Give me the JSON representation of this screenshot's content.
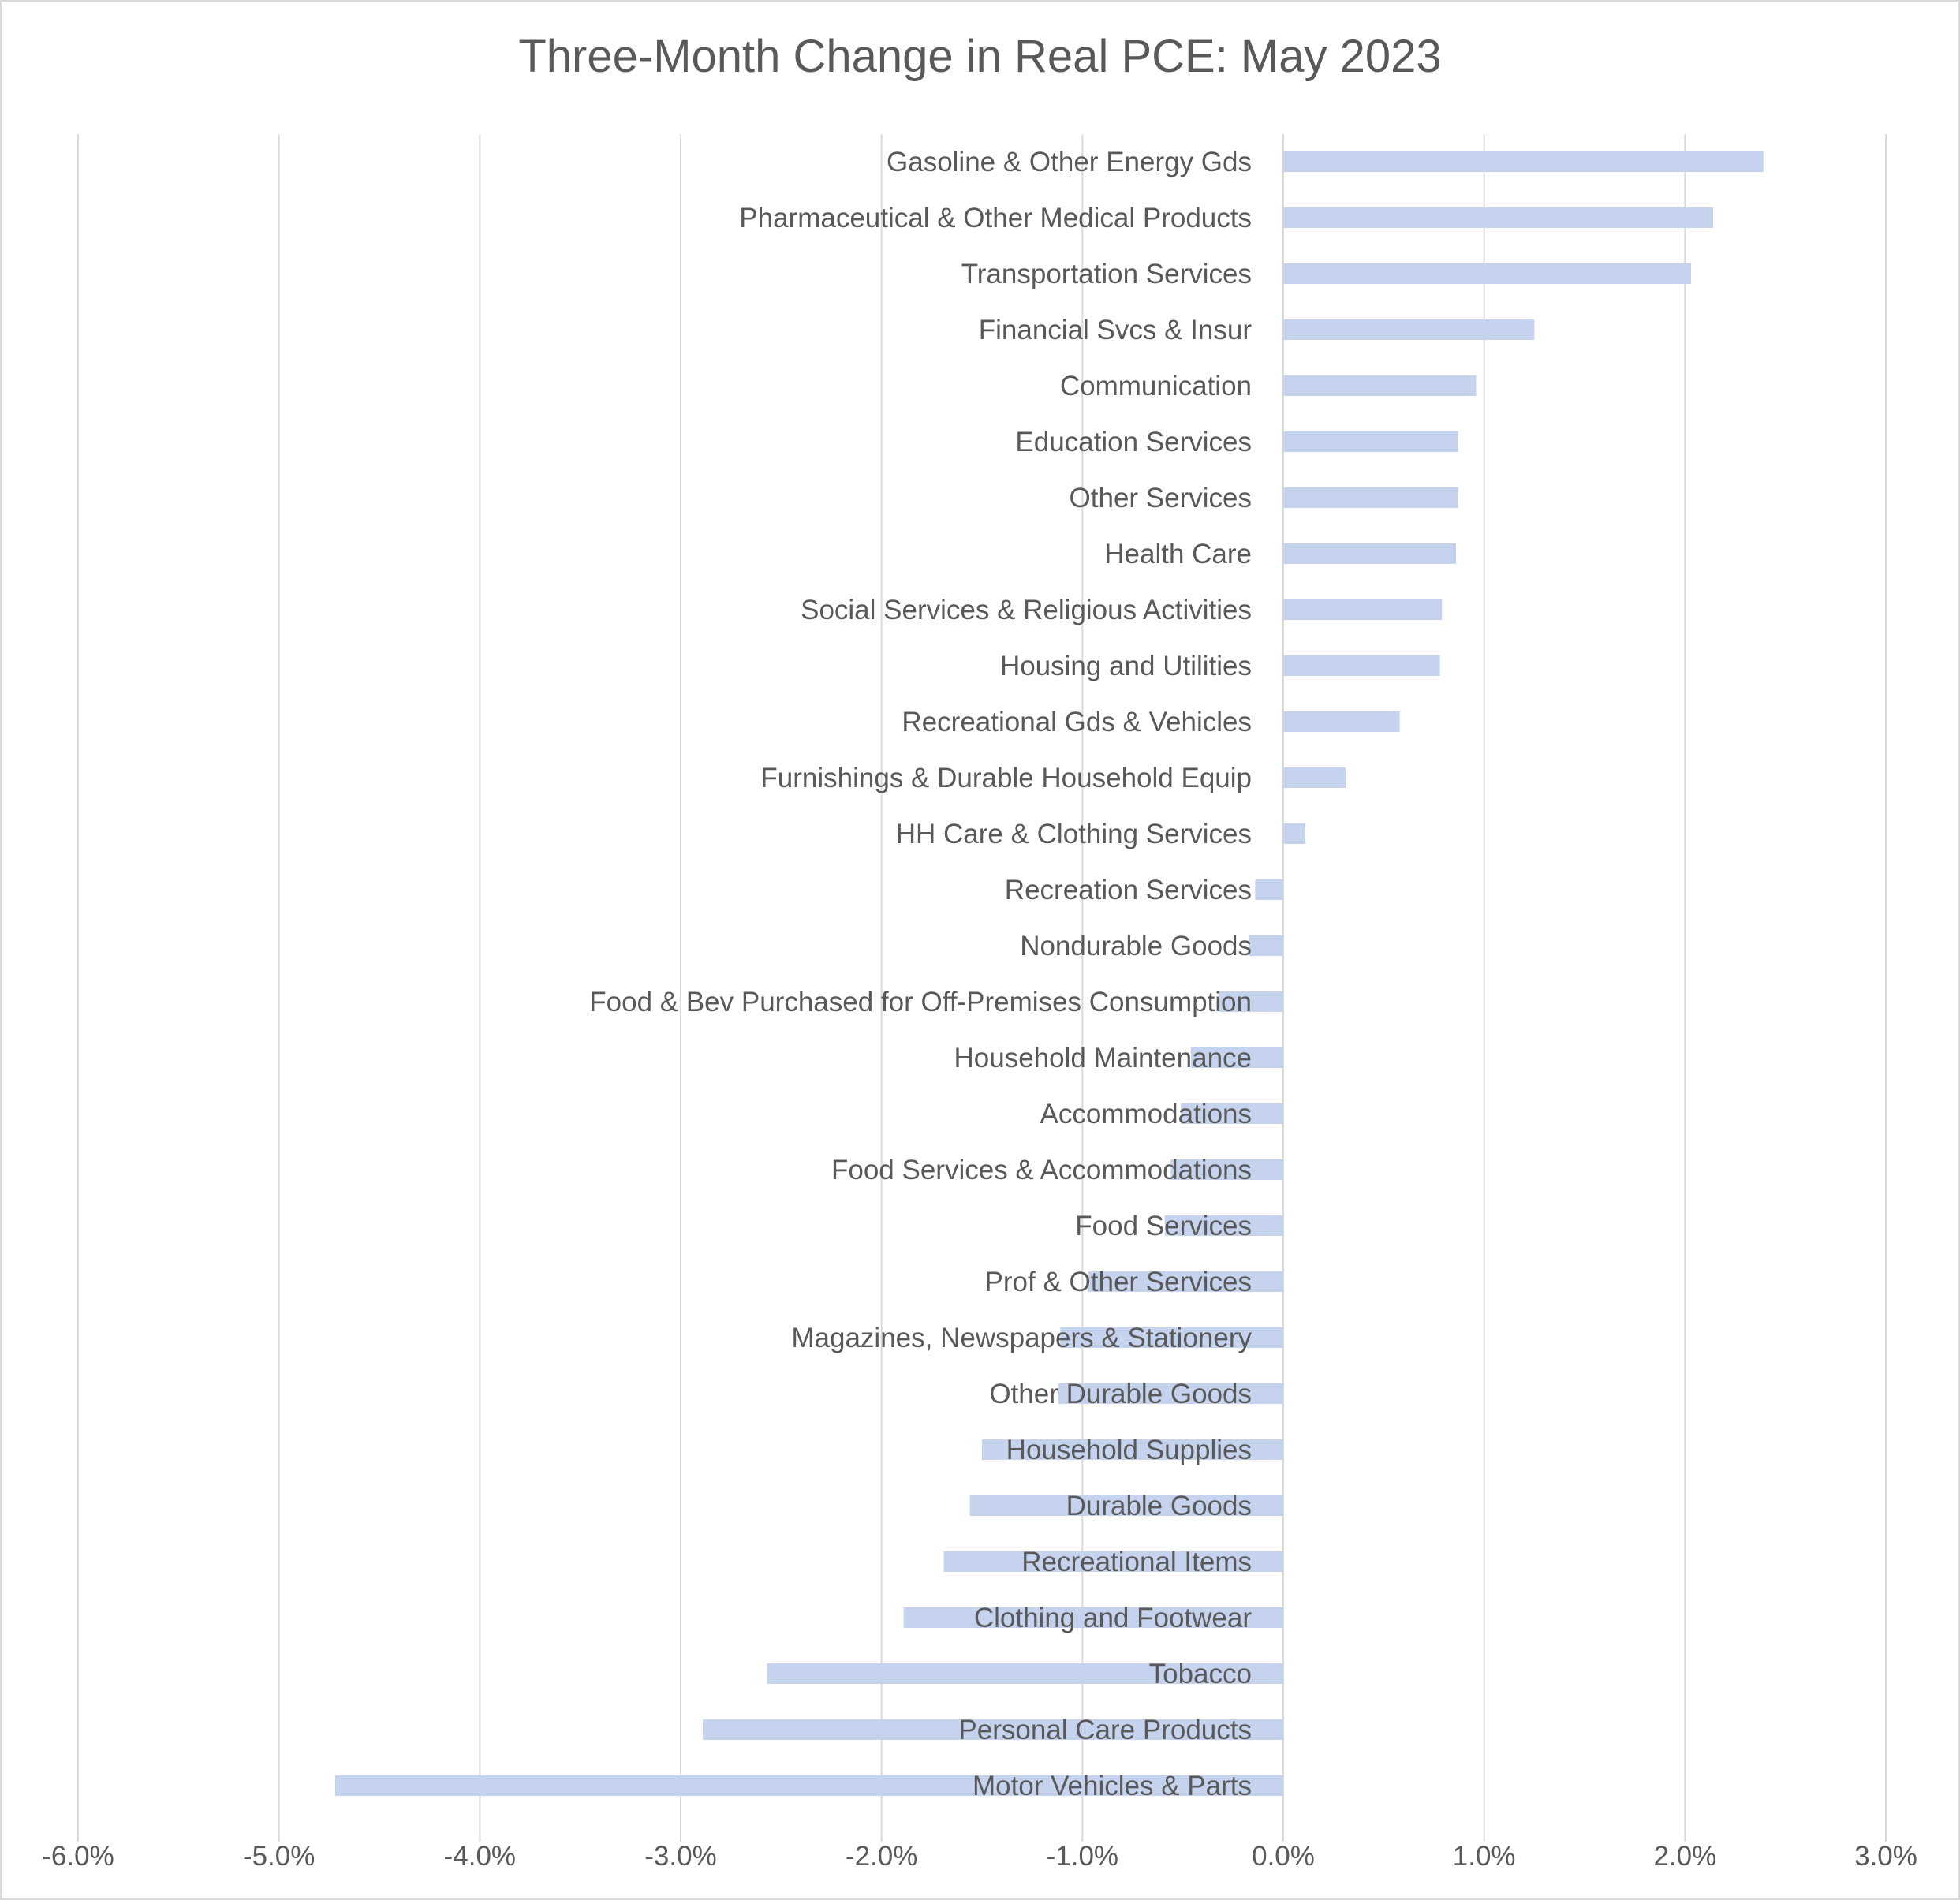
{
  "chart_data": {
    "type": "bar",
    "orientation": "horizontal",
    "title": "Three-Month Change in Real PCE: May 2023",
    "xlabel": "",
    "ylabel": "",
    "xlim": [
      -6.0,
      3.0
    ],
    "x_ticks": [
      "-6.0%",
      "-5.0%",
      "-4.0%",
      "-3.0%",
      "-2.0%",
      "-1.0%",
      "0.0%",
      "1.0%",
      "2.0%",
      "3.0%"
    ],
    "grid": "vertical",
    "legend": "none",
    "bar_color": "#c5d3ee",
    "gridline_color": "#d9d9d9",
    "categories": [
      "Gasoline & Other Energy Gds",
      "Pharmaceutical & Other Medical Products",
      "Transportation Services",
      "Financial Svcs & Insur",
      "Communication",
      "Education Services",
      "Other Services",
      "Health Care",
      "Social Services & Religious Activities",
      "Housing and Utilities",
      "Recreational Gds & Vehicles",
      "Furnishings & Durable Household Equip",
      "HH Care & Clothing Services",
      "Recreation Services",
      "Nondurable Goods",
      "Food & Bev Purchased for Off-Premises Consumption",
      "Household Maintenance",
      "Accommodations",
      "Food Services & Accommodations",
      "Food Services",
      "Prof & Other Services",
      "Magazines, Newspapers & Stationery",
      "Other Durable Goods",
      "Household Supplies",
      "Durable Goods",
      "Recreational Items",
      "Clothing and Footwear",
      "Tobacco",
      "Personal Care Products",
      "Motor Vehicles & Parts"
    ],
    "values": [
      2.39,
      2.14,
      2.03,
      1.25,
      0.96,
      0.87,
      0.87,
      0.86,
      0.79,
      0.78,
      0.58,
      0.31,
      0.11,
      -0.14,
      -0.17,
      -0.32,
      -0.46,
      -0.51,
      -0.56,
      -0.59,
      -0.97,
      -1.11,
      -1.12,
      -1.5,
      -1.56,
      -1.69,
      -1.89,
      -2.57,
      -2.89,
      -4.72
    ]
  }
}
